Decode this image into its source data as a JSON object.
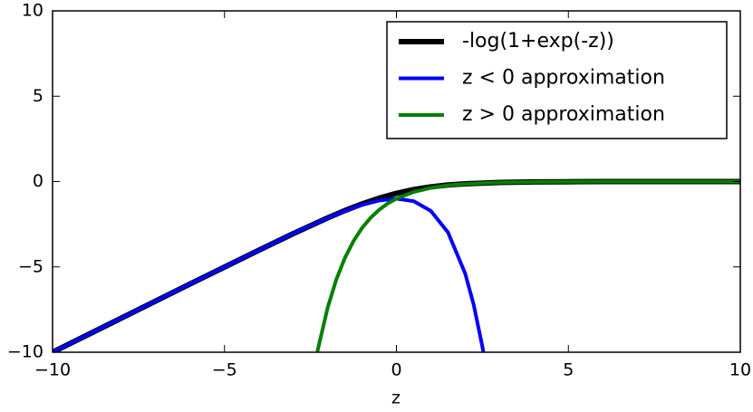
{
  "chart_data": {
    "type": "line",
    "xlabel": "z",
    "xlim": [
      -10,
      10
    ],
    "xticks": [
      -10,
      -5,
      0,
      5,
      10
    ],
    "ylim": [
      -10,
      10
    ],
    "yticks": [
      -10,
      -5,
      0,
      5,
      10
    ],
    "legend": "upper right",
    "series": [
      {
        "name": "-log(1+exp(-z))",
        "color": "#000000",
        "x": [
          -10,
          -8,
          -6,
          -5,
          -4,
          -3,
          -2,
          -1.5,
          -1,
          -0.5,
          0,
          0.5,
          1,
          1.5,
          2,
          3,
          4,
          5,
          6,
          8,
          10
        ],
        "values": [
          -10.0,
          -8.0,
          -6.0,
          -5.01,
          -4.02,
          -3.05,
          -2.13,
          -1.7,
          -1.31,
          -0.97,
          -0.69,
          -0.47,
          -0.31,
          -0.2,
          -0.13,
          -0.05,
          -0.02,
          -0.01,
          0,
          0,
          0
        ]
      },
      {
        "name": "z < 0 approximation",
        "color": "#0000ff",
        "x": [
          -10,
          -8,
          -6,
          -5,
          -4,
          -3,
          -2,
          -1.5,
          -1,
          -0.5,
          0,
          0.5,
          1,
          1.5,
          2,
          2.25,
          2.5,
          2.53
        ],
        "values": [
          -10.0,
          -8.0,
          -6.0,
          -5.01,
          -4.02,
          -3.05,
          -2.14,
          -1.72,
          -1.37,
          -1.11,
          -1,
          -1.15,
          -1.72,
          -2.98,
          -5.39,
          -7.24,
          -9.68,
          -10.02
        ]
      },
      {
        "name": "z > 0 approximation",
        "color": "#008000",
        "x": [
          -2.3,
          -2,
          -1.75,
          -1.5,
          -1.25,
          -1,
          -0.75,
          -0.5,
          -0.25,
          0,
          0.5,
          1,
          1.5,
          2,
          3,
          4,
          5,
          6,
          8,
          10
        ],
        "values": [
          -9.97,
          -7.39,
          -5.75,
          -4.48,
          -3.49,
          -2.72,
          -2.12,
          -1.65,
          -1.28,
          -1,
          -0.61,
          -0.37,
          -0.22,
          -0.14,
          -0.05,
          -0.02,
          -0.01,
          0,
          0,
          0
        ]
      }
    ]
  }
}
